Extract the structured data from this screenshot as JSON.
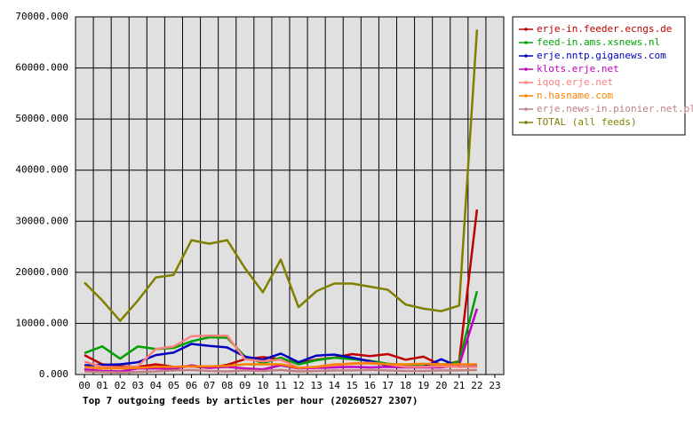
{
  "chart_data": {
    "type": "line",
    "title": "Top 7 outgoing feeds by articles per hour (20260527 2307)",
    "categories": [
      "00",
      "01",
      "02",
      "03",
      "04",
      "05",
      "06",
      "07",
      "08",
      "09",
      "10",
      "11",
      "12",
      "13",
      "14",
      "15",
      "16",
      "17",
      "18",
      "19",
      "20",
      "21",
      "22",
      "23"
    ],
    "ylim": [
      0,
      70000
    ],
    "yticks": [
      {
        "value": 0,
        "label": "0.000"
      },
      {
        "value": 10000,
        "label": "10000.000"
      },
      {
        "value": 20000,
        "label": "20000.000"
      },
      {
        "value": 30000,
        "label": "30000.000"
      },
      {
        "value": 40000,
        "label": "40000.000"
      },
      {
        "value": 50000,
        "label": "50000.000"
      },
      {
        "value": 60000,
        "label": "60000.000"
      },
      {
        "value": 70000,
        "label": "70000.000"
      }
    ],
    "grid": true,
    "series": [
      {
        "name": "erje-in.feeder.ecngs.de",
        "color": "#c00000",
        "values": [
          3800,
          2000,
          1600,
          1500,
          2000,
          1500,
          1600,
          1300,
          1900,
          3000,
          3400,
          3000,
          2300,
          2900,
          3300,
          4000,
          3600,
          4000,
          2900,
          3500,
          1800,
          2600,
          32300,
          null
        ]
      },
      {
        "name": "feed-in.ams.xsnews.nl",
        "color": "#00a000",
        "values": [
          4200,
          5500,
          3100,
          5500,
          5000,
          5200,
          6500,
          7300,
          7200,
          3500,
          2200,
          3300,
          2000,
          2800,
          3300,
          3000,
          2700,
          2100,
          1800,
          2000,
          1900,
          2500,
          16300,
          null
        ]
      },
      {
        "name": "erje.nntp.giganews.com",
        "color": "#0000c0",
        "values": [
          1800,
          1900,
          2000,
          2400,
          3800,
          4300,
          6000,
          5600,
          5300,
          3500,
          2900,
          4100,
          2400,
          3700,
          3900,
          3300,
          2600,
          1700,
          1500,
          1500,
          3000,
          1500,
          1600,
          null
        ]
      },
      {
        "name": "klots.erje.net",
        "color": "#c000c0",
        "values": [
          1000,
          700,
          600,
          1200,
          1200,
          1100,
          1800,
          1300,
          1500,
          1200,
          1000,
          1800,
          1200,
          1300,
          1400,
          1500,
          1400,
          1500,
          1400,
          1400,
          1400,
          1800,
          12900,
          null
        ]
      },
      {
        "name": "iqoq.erje.net",
        "color": "#ff8080",
        "values": [
          2500,
          1500,
          1400,
          1600,
          5000,
          5500,
          7500,
          7600,
          7600,
          3000,
          2600,
          2900,
          1300,
          1500,
          1800,
          2200,
          2300,
          2000,
          1500,
          1500,
          1600,
          1500,
          1500,
          null
        ]
      },
      {
        "name": "n.hasname.com",
        "color": "#ff8000",
        "values": [
          1500,
          1200,
          1200,
          1300,
          1500,
          1500,
          1600,
          1600,
          1700,
          2000,
          2000,
          2000,
          1300,
          1500,
          2000,
          2100,
          2200,
          2000,
          2000,
          2100,
          2000,
          2000,
          2000,
          null
        ]
      },
      {
        "name": "erje.news-in.pionier.net.pl",
        "color": "#c08080",
        "values": [
          600,
          500,
          400,
          500,
          600,
          800,
          900,
          700,
          600,
          800,
          700,
          900,
          600,
          700,
          800,
          800,
          900,
          800,
          700,
          700,
          800,
          800,
          900,
          null
        ]
      },
      {
        "name": "TOTAL (all feeds)",
        "color": "#808000",
        "values": [
          18000,
          14500,
          10500,
          14500,
          19000,
          19500,
          26300,
          25600,
          26300,
          20800,
          16100,
          22500,
          13200,
          16300,
          17800,
          17800,
          17200,
          16600,
          13700,
          12900,
          12400,
          13500,
          67500,
          null
        ]
      }
    ]
  }
}
